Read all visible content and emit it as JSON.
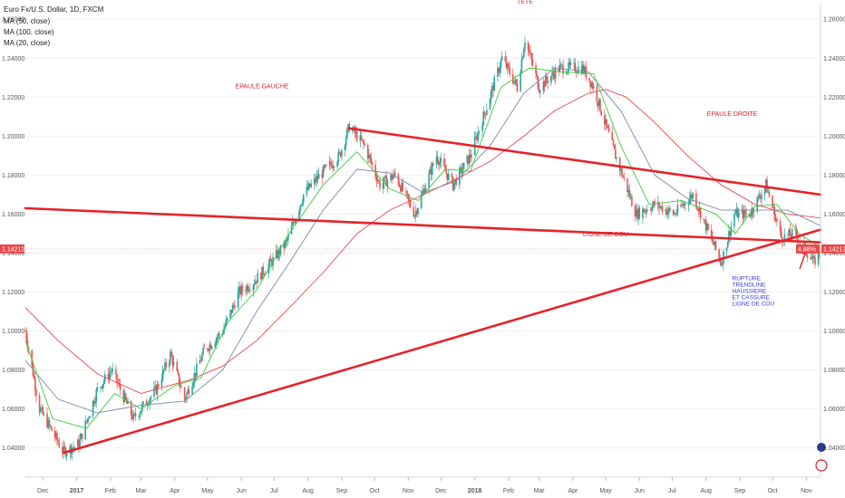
{
  "chart_data": {
    "type": "candlestick",
    "title": "Euro Fx/U.S. Dollar, 1D, FXCM",
    "legend": [
      "MA (50, close)",
      "MA (100, close)",
      "MA (20, close)"
    ],
    "y_ticks": [
      "1.26000",
      "1.24000",
      "1.22000",
      "1.20000",
      "1.18000",
      "1.16000",
      "1.14000",
      "1.12000",
      "1.10000",
      "1.08000",
      "1.06000",
      "1.04000"
    ],
    "ylim": [
      1.025,
      1.268
    ],
    "x_labels": [
      {
        "label": "Dec",
        "x": "2016-12-01"
      },
      {
        "label": "2017",
        "x": "2017-01-01"
      },
      {
        "label": "Feb",
        "x": "2017-02-01"
      },
      {
        "label": "Mar",
        "x": "2017-03-01"
      },
      {
        "label": "Apr",
        "x": "2017-04-01"
      },
      {
        "label": "May",
        "x": "2017-05-01"
      },
      {
        "label": "Jun",
        "x": "2017-06-01"
      },
      {
        "label": "Jul",
        "x": "2017-07-01"
      },
      {
        "label": "Aug",
        "x": "2017-08-01"
      },
      {
        "label": "Sep",
        "x": "2017-09-01"
      },
      {
        "label": "Oct",
        "x": "2017-10-01"
      },
      {
        "label": "Nov",
        "x": "2017-11-01"
      },
      {
        "label": "Dec",
        "x": "2017-12-01"
      },
      {
        "label": "2018",
        "x": "2018-01-01"
      },
      {
        "label": "Feb",
        "x": "2018-02-01"
      },
      {
        "label": "Mar",
        "x": "2018-03-01"
      },
      {
        "label": "Apr",
        "x": "2018-04-01"
      },
      {
        "label": "May",
        "x": "2018-05-01"
      },
      {
        "label": "Jun",
        "x": "2018-06-01"
      },
      {
        "label": "Jul",
        "x": "2018-07-01"
      },
      {
        "label": "Aug",
        "x": "2018-08-01"
      },
      {
        "label": "Sep",
        "x": "2018-09-01"
      },
      {
        "label": "Oct",
        "x": "2018-10-01"
      },
      {
        "label": "Nov",
        "x": "2018-11-01"
      }
    ],
    "xlim": [
      "2016-11-15",
      "2018-11-14"
    ],
    "price_keypoints": [
      [
        "2016-11-15",
        1.1
      ],
      [
        "2016-11-28",
        1.06
      ],
      [
        "2016-12-20",
        1.038
      ],
      [
        "2017-01-03",
        1.042
      ],
      [
        "2017-01-20",
        1.07
      ],
      [
        "2017-02-02",
        1.08
      ],
      [
        "2017-02-22",
        1.055
      ],
      [
        "2017-03-15",
        1.07
      ],
      [
        "2017-03-28",
        1.088
      ],
      [
        "2017-04-10",
        1.065
      ],
      [
        "2017-04-28",
        1.09
      ],
      [
        "2017-05-15",
        1.1
      ],
      [
        "2017-05-30",
        1.12
      ],
      [
        "2017-06-12",
        1.125
      ],
      [
        "2017-06-28",
        1.135
      ],
      [
        "2017-07-12",
        1.145
      ],
      [
        "2017-07-28",
        1.17
      ],
      [
        "2017-08-12",
        1.18
      ],
      [
        "2017-08-30",
        1.19
      ],
      [
        "2017-09-08",
        1.205
      ],
      [
        "2017-09-22",
        1.195
      ],
      [
        "2017-10-06",
        1.175
      ],
      [
        "2017-10-20",
        1.18
      ],
      [
        "2017-11-07",
        1.16
      ],
      [
        "2017-11-27",
        1.19
      ],
      [
        "2017-12-12",
        1.175
      ],
      [
        "2017-12-28",
        1.19
      ],
      [
        "2018-01-12",
        1.215
      ],
      [
        "2018-01-26",
        1.24
      ],
      [
        "2018-02-09",
        1.225
      ],
      [
        "2018-02-16",
        1.25
      ],
      [
        "2018-03-01",
        1.225
      ],
      [
        "2018-03-20",
        1.235
      ],
      [
        "2018-04-10",
        1.235
      ],
      [
        "2018-04-20",
        1.225
      ],
      [
        "2018-05-10",
        1.19
      ],
      [
        "2018-05-29",
        1.16
      ],
      [
        "2018-06-15",
        1.165
      ],
      [
        "2018-07-03",
        1.16
      ],
      [
        "2018-07-20",
        1.17
      ],
      [
        "2018-08-15",
        1.135
      ],
      [
        "2018-08-27",
        1.16
      ],
      [
        "2018-09-10",
        1.16
      ],
      [
        "2018-09-25",
        1.175
      ],
      [
        "2018-10-09",
        1.148
      ],
      [
        "2018-10-22",
        1.15
      ],
      [
        "2018-11-08",
        1.135
      ],
      [
        "2018-11-14",
        1.1421
      ]
    ],
    "ma_series": [
      {
        "name": "MA (100, close)",
        "color": "#e8494c",
        "points": [
          [
            "2016-11-15",
            1.112
          ],
          [
            "2016-12-15",
            1.095
          ],
          [
            "2017-01-20",
            1.078
          ],
          [
            "2017-03-01",
            1.068
          ],
          [
            "2017-04-15",
            1.075
          ],
          [
            "2017-05-15",
            1.082
          ],
          [
            "2017-06-15",
            1.095
          ],
          [
            "2017-07-15",
            1.112
          ],
          [
            "2017-08-15",
            1.13
          ],
          [
            "2017-09-15",
            1.15
          ],
          [
            "2017-10-15",
            1.162
          ],
          [
            "2017-11-15",
            1.17
          ],
          [
            "2017-12-15",
            1.178
          ],
          [
            "2018-01-15",
            1.187
          ],
          [
            "2018-02-15",
            1.2
          ],
          [
            "2018-03-15",
            1.213
          ],
          [
            "2018-04-15",
            1.222
          ],
          [
            "2018-05-01",
            1.224
          ],
          [
            "2018-05-20",
            1.22
          ],
          [
            "2018-06-15",
            1.207
          ],
          [
            "2018-07-15",
            1.19
          ],
          [
            "2018-08-15",
            1.175
          ],
          [
            "2018-09-15",
            1.165
          ],
          [
            "2018-10-15",
            1.16
          ],
          [
            "2018-11-14",
            1.158
          ]
        ]
      },
      {
        "name": "MA (50, close)",
        "color": "#7a88a8",
        "points": [
          [
            "2016-11-15",
            1.085
          ],
          [
            "2016-12-15",
            1.065
          ],
          [
            "2017-01-20",
            1.058
          ],
          [
            "2017-03-01",
            1.062
          ],
          [
            "2017-04-10",
            1.064
          ],
          [
            "2017-05-15",
            1.08
          ],
          [
            "2017-06-15",
            1.11
          ],
          [
            "2017-07-15",
            1.135
          ],
          [
            "2017-08-15",
            1.162
          ],
          [
            "2017-09-15",
            1.183
          ],
          [
            "2017-10-15",
            1.181
          ],
          [
            "2017-11-15",
            1.171
          ],
          [
            "2017-12-15",
            1.177
          ],
          [
            "2018-01-15",
            1.195
          ],
          [
            "2018-02-15",
            1.222
          ],
          [
            "2018-03-15",
            1.235
          ],
          [
            "2018-04-15",
            1.233
          ],
          [
            "2018-05-15",
            1.213
          ],
          [
            "2018-06-15",
            1.18
          ],
          [
            "2018-07-15",
            1.168
          ],
          [
            "2018-08-15",
            1.162
          ],
          [
            "2018-09-15",
            1.162
          ],
          [
            "2018-10-15",
            1.162
          ],
          [
            "2018-11-14",
            1.154
          ]
        ]
      },
      {
        "name": "MA (20, close)",
        "color": "#3ec93b",
        "points": [
          [
            "2016-11-15",
            1.095
          ],
          [
            "2016-12-10",
            1.055
          ],
          [
            "2017-01-10",
            1.05
          ],
          [
            "2017-02-05",
            1.068
          ],
          [
            "2017-03-01",
            1.06
          ],
          [
            "2017-04-01",
            1.072
          ],
          [
            "2017-04-25",
            1.076
          ],
          [
            "2017-05-20",
            1.105
          ],
          [
            "2017-06-15",
            1.121
          ],
          [
            "2017-07-15",
            1.15
          ],
          [
            "2017-08-15",
            1.175
          ],
          [
            "2017-09-15",
            1.192
          ],
          [
            "2017-10-15",
            1.173
          ],
          [
            "2017-11-10",
            1.167
          ],
          [
            "2017-12-05",
            1.183
          ],
          [
            "2017-12-28",
            1.182
          ],
          [
            "2018-01-25",
            1.225
          ],
          [
            "2018-02-20",
            1.235
          ],
          [
            "2018-03-20",
            1.233
          ],
          [
            "2018-04-20",
            1.232
          ],
          [
            "2018-05-15",
            1.195
          ],
          [
            "2018-06-10",
            1.165
          ],
          [
            "2018-07-10",
            1.167
          ],
          [
            "2018-08-10",
            1.16
          ],
          [
            "2018-08-28",
            1.15
          ],
          [
            "2018-09-15",
            1.164
          ],
          [
            "2018-10-05",
            1.165
          ],
          [
            "2018-10-25",
            1.15
          ],
          [
            "2018-11-14",
            1.143
          ]
        ]
      }
    ],
    "trendlines": [
      {
        "from": [
          "2016-11-15",
          1.163
        ],
        "to": [
          "2018-11-14",
          1.1455
        ]
      },
      {
        "from": [
          "2017-09-08",
          1.204
        ],
        "to": [
          "2018-11-14",
          1.17
        ]
      },
      {
        "from": [
          "2016-12-20",
          1.0375
        ],
        "to": [
          "2018-11-14",
          1.152
        ]
      }
    ],
    "current_price": "1.14212",
    "current_price_value": 1.14212,
    "left_axis_value": "1.14212",
    "right_badge_pct": "4.88%",
    "annotations": [
      {
        "text": "TETE",
        "x": "2018-02-16",
        "y": 1.268
      },
      {
        "text": "EPAULE GAUCHE",
        "x": "2017-06-20",
        "y": 1.2245
      },
      {
        "text": "EPAULE DROITE",
        "x": "2018-08-25",
        "y": 1.2105
      },
      {
        "text": "LIGNE DE COU",
        "x": "2018-05-01",
        "y": 1.1485
      }
    ],
    "note_lines": [
      "RUPTURE",
      "TRENDLINE",
      "HAUSSIERE",
      "ET CASSURE",
      "LIGNE DE COU"
    ],
    "note_position": [
      "2018-08-25",
      1.126
    ],
    "arrow": {
      "from": [
        "2018-10-26",
        1.132
      ],
      "to": [
        "2018-10-31",
        1.14
      ]
    }
  }
}
